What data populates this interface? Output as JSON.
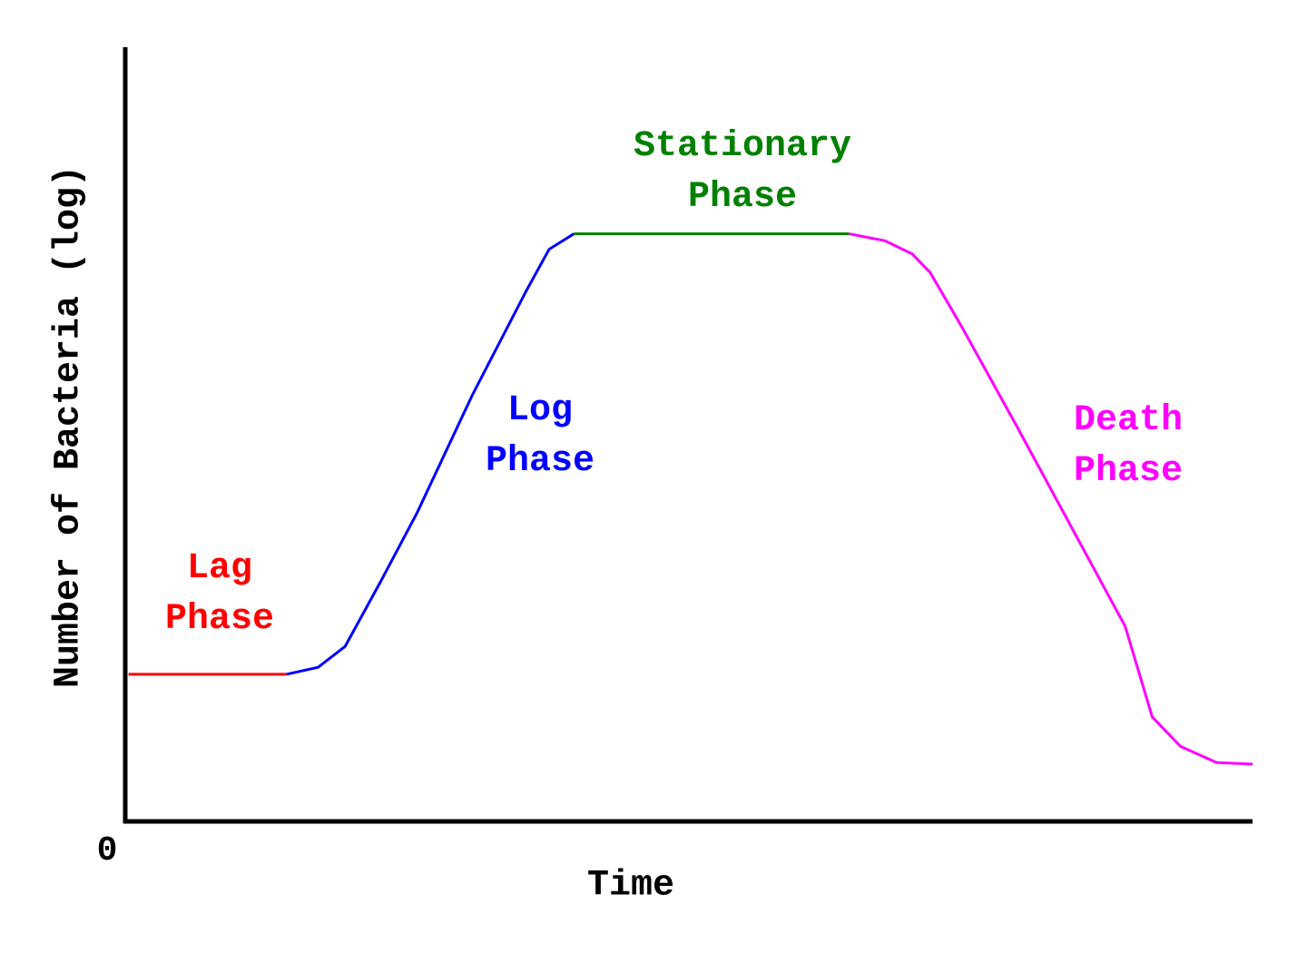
{
  "chart_data": {
    "type": "line",
    "x_label": "Time",
    "y_label": "Number of Bacteria (log)",
    "xlim": [
      0,
      100
    ],
    "ylim": [
      0,
      100
    ],
    "xticks": [
      0
    ],
    "series": [
      {
        "name": "Lag Phase",
        "color": "#ff0000",
        "x": [
          0.3,
          14.3
        ],
        "values": [
          19,
          19
        ]
      },
      {
        "name": "Log Phase",
        "color": "#0000ff",
        "x": [
          14.3,
          17.1,
          19.5,
          22.7,
          25.9,
          30.8,
          35.6,
          37.6,
          39.8
        ],
        "values": [
          19,
          19.9,
          22.6,
          31.1,
          39.9,
          55.1,
          68.6,
          73.9,
          75.9
        ]
      },
      {
        "name": "Stationary Phase",
        "color": "#008000",
        "x": [
          39.8,
          64.2
        ],
        "values": [
          75.9,
          75.9
        ]
      },
      {
        "name": "Death Phase",
        "color": "#ff00ff",
        "x": [
          64.2,
          67.4,
          69.8,
          71.4,
          74.2,
          79.1,
          83.9,
          88.7,
          91.1,
          93.6,
          96.8,
          100
        ],
        "values": [
          75.9,
          75.0,
          73.3,
          70.9,
          63.9,
          51.0,
          38.1,
          25.2,
          13.5,
          9.7,
          7.6,
          7.4
        ]
      }
    ]
  }
}
